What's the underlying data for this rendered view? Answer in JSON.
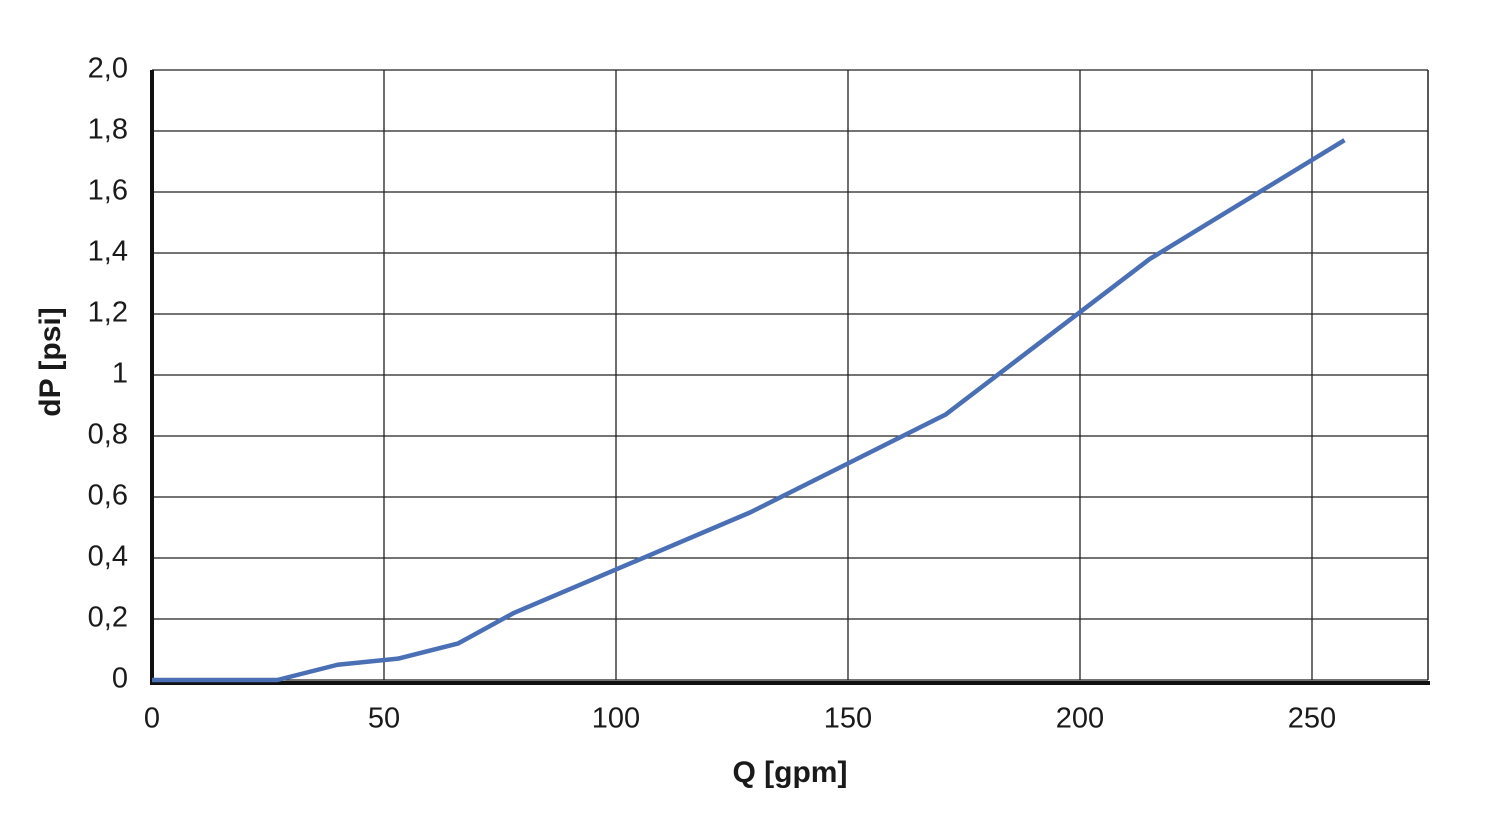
{
  "chart_data": {
    "type": "line",
    "xlabel": "Q [gpm]",
    "ylabel": "dP [psi]",
    "x": [
      0,
      27,
      40,
      53,
      66,
      78,
      129,
      171,
      215,
      257
    ],
    "series": [
      {
        "color": "#4a6fb5",
        "values": [
          0,
          0,
          0.05,
          0.07,
          0.12,
          0.22,
          0.55,
          0.87,
          1.38,
          1.77
        ]
      }
    ],
    "xlim": [
      0,
      275
    ],
    "xticks": [
      0,
      50,
      100,
      150,
      200,
      250
    ],
    "ylim": [
      0,
      2
    ],
    "yticks": [
      0,
      {
        "value": 0.2,
        "label": "0,2"
      },
      {
        "value": 0.4,
        "label": "0,4"
      },
      {
        "value": 0.6,
        "label": "0,6"
      },
      {
        "value": 0.8,
        "label": "0,8"
      },
      1,
      {
        "value": 1.2,
        "label": "1,2"
      },
      {
        "value": 1.4,
        "label": "1,4"
      },
      {
        "value": 1.6,
        "label": "1,6"
      },
      {
        "value": 1.8,
        "label": "1,8"
      },
      {
        "value": 2,
        "label": "2,0"
      }
    ],
    "grid": true
  }
}
